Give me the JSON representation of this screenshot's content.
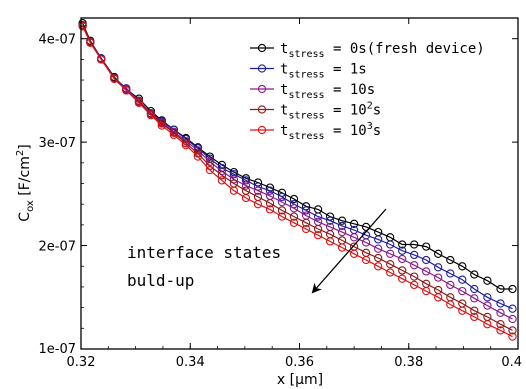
{
  "chart_data": {
    "type": "line",
    "xlabel": "x [µm]",
    "ylabel": {
      "base": "C",
      "sub": "ox",
      "unit_open": " [F/cm",
      "unit_sup": "2",
      "unit_close": "]"
    },
    "xlim": [
      0.32,
      0.4
    ],
    "ylim": [
      1e-07,
      4.2e-07
    ],
    "xticks": [
      {
        "value": 0.32,
        "label": "0.32"
      },
      {
        "value": 0.34,
        "label": "0.34"
      },
      {
        "value": 0.36,
        "label": "0.36"
      },
      {
        "value": 0.38,
        "label": "0.38"
      },
      {
        "value": 0.4,
        "label": "0.4"
      }
    ],
    "yticks": [
      {
        "value": 1e-07,
        "label": "1e-07"
      },
      {
        "value": 2e-07,
        "label": "2e-07"
      },
      {
        "value": 3e-07,
        "label": "3e-07"
      },
      {
        "value": 4e-07,
        "label": "4e-07"
      }
    ],
    "grid": false,
    "legend_position": "top-right",
    "series": [
      {
        "legend": {
          "base": "t",
          "sub": "stress",
          "rest": " = 0s(fresh device)",
          "sup": ""
        },
        "color": "#000000",
        "x": [
          0.3203,
          0.3217,
          0.3237,
          0.3261,
          0.3283,
          0.3306,
          0.3328,
          0.3348,
          0.337,
          0.3392,
          0.3414,
          0.3436,
          0.3458,
          0.348,
          0.3502,
          0.3524,
          0.3546,
          0.3568,
          0.359,
          0.3612,
          0.3634,
          0.3656,
          0.3678,
          0.37,
          0.3722,
          0.3744,
          0.3766,
          0.3788,
          0.381,
          0.3832,
          0.3854,
          0.3876,
          0.3898,
          0.392,
          0.3944,
          0.3968,
          0.399
        ],
        "y": [
          4.15e-07,
          3.98e-07,
          3.81e-07,
          3.63e-07,
          3.51e-07,
          3.42e-07,
          3.3e-07,
          3.21e-07,
          3.12e-07,
          3.04e-07,
          2.95e-07,
          2.86e-07,
          2.78e-07,
          2.71e-07,
          2.65e-07,
          2.61e-07,
          2.56e-07,
          2.51e-07,
          2.45e-07,
          2.38e-07,
          2.35e-07,
          2.28e-07,
          2.24e-07,
          2.21e-07,
          2.18e-07,
          2.13e-07,
          2.08e-07,
          2.01e-07,
          2.01e-07,
          1.99e-07,
          1.92e-07,
          1.86e-07,
          1.8e-07,
          1.72e-07,
          1.66e-07,
          1.58e-07,
          1.58e-07
        ]
      },
      {
        "legend": {
          "base": "t",
          "sub": "stress",
          "rest": " = 1s",
          "sup": ""
        },
        "color": "#1f1fa0",
        "x": [
          0.3203,
          0.3217,
          0.3237,
          0.3261,
          0.3283,
          0.3306,
          0.3328,
          0.3348,
          0.337,
          0.3392,
          0.3414,
          0.3436,
          0.3458,
          0.348,
          0.3502,
          0.3524,
          0.3546,
          0.3568,
          0.359,
          0.3612,
          0.3634,
          0.3656,
          0.3678,
          0.37,
          0.3722,
          0.3744,
          0.3766,
          0.3788,
          0.381,
          0.3832,
          0.3854,
          0.3876,
          0.3898,
          0.392,
          0.3944,
          0.3968,
          0.399
        ],
        "y": [
          4.13e-07,
          3.97e-07,
          3.81e-07,
          3.62e-07,
          3.52e-07,
          3.4e-07,
          3.28e-07,
          3.2e-07,
          3.12e-07,
          3.03e-07,
          2.94e-07,
          2.84e-07,
          2.75e-07,
          2.69e-07,
          2.63e-07,
          2.57e-07,
          2.53e-07,
          2.47e-07,
          2.4e-07,
          2.34e-07,
          2.28e-07,
          2.24e-07,
          2.19e-07,
          2.15e-07,
          2.1e-07,
          2.06e-07,
          2.01e-07,
          1.95e-07,
          1.91e-07,
          1.86e-07,
          1.79e-07,
          1.73e-07,
          1.67e-07,
          1.58e-07,
          1.5e-07,
          1.44e-07,
          1.39e-07
        ]
      },
      {
        "legend": {
          "base": "t",
          "sub": "stress",
          "rest": " = 10s",
          "sup": ""
        },
        "color": "#8a1a8a",
        "x": [
          0.3203,
          0.3217,
          0.3237,
          0.3261,
          0.3283,
          0.3306,
          0.3328,
          0.3348,
          0.337,
          0.3392,
          0.3414,
          0.3436,
          0.3458,
          0.348,
          0.3502,
          0.3524,
          0.3546,
          0.3568,
          0.359,
          0.3612,
          0.3634,
          0.3656,
          0.3678,
          0.37,
          0.3722,
          0.3744,
          0.3766,
          0.3788,
          0.381,
          0.3832,
          0.3854,
          0.3876,
          0.3898,
          0.392,
          0.3944,
          0.3968,
          0.399
        ],
        "y": [
          4.13e-07,
          3.97e-07,
          3.8e-07,
          3.62e-07,
          3.51e-07,
          3.4e-07,
          3.28e-07,
          3.19e-07,
          3.1e-07,
          3.01e-07,
          2.92e-07,
          2.81e-07,
          2.72e-07,
          2.64e-07,
          2.58e-07,
          2.53e-07,
          2.48e-07,
          2.42e-07,
          2.36e-07,
          2.29e-07,
          2.23e-07,
          2.18e-07,
          2.13e-07,
          2.08e-07,
          2.03e-07,
          1.97e-07,
          1.92e-07,
          1.87e-07,
          1.81e-07,
          1.75e-07,
          1.69e-07,
          1.62e-07,
          1.56e-07,
          1.49e-07,
          1.42e-07,
          1.35e-07,
          1.29e-07
        ]
      },
      {
        "legend": {
          "base": "t",
          "sub": "stress",
          "rest": " = 10",
          "sup": "2",
          "tail": "s"
        },
        "color": "#8b1a1a",
        "x": [
          0.3203,
          0.3217,
          0.3237,
          0.3261,
          0.3283,
          0.3306,
          0.3328,
          0.3348,
          0.337,
          0.3392,
          0.3414,
          0.3436,
          0.3458,
          0.348,
          0.3502,
          0.3524,
          0.3546,
          0.3568,
          0.359,
          0.3612,
          0.3634,
          0.3656,
          0.3678,
          0.37,
          0.3722,
          0.3744,
          0.3766,
          0.3788,
          0.381,
          0.3832,
          0.3854,
          0.3876,
          0.3898,
          0.392,
          0.3944,
          0.3968,
          0.399
        ],
        "y": [
          4.13e-07,
          3.97e-07,
          3.8e-07,
          3.62e-07,
          3.5e-07,
          3.39e-07,
          3.27e-07,
          3.18e-07,
          3.09e-07,
          2.99e-07,
          2.89e-07,
          2.77e-07,
          2.68e-07,
          2.6e-07,
          2.53e-07,
          2.47e-07,
          2.41e-07,
          2.34e-07,
          2.28e-07,
          2.22e-07,
          2.16e-07,
          2.11e-07,
          2.05e-07,
          1.99e-07,
          1.93e-07,
          1.88e-07,
          1.82e-07,
          1.76e-07,
          1.7e-07,
          1.63e-07,
          1.57e-07,
          1.5e-07,
          1.44e-07,
          1.37e-07,
          1.31e-07,
          1.24e-07,
          1.18e-07
        ]
      },
      {
        "legend": {
          "base": "t",
          "sub": "stress",
          "rest": " = 10",
          "sup": "3",
          "tail": "s"
        },
        "color": "#e01010",
        "x": [
          0.3203,
          0.3217,
          0.3237,
          0.3261,
          0.3283,
          0.3306,
          0.3328,
          0.3348,
          0.337,
          0.3392,
          0.3414,
          0.3436,
          0.3458,
          0.348,
          0.3502,
          0.3524,
          0.3546,
          0.3568,
          0.359,
          0.3612,
          0.3634,
          0.3656,
          0.3678,
          0.37,
          0.3722,
          0.3744,
          0.3766,
          0.3788,
          0.381,
          0.3832,
          0.3854,
          0.3876,
          0.3898,
          0.392,
          0.3944,
          0.3968,
          0.399
        ],
        "y": [
          4.12e-07,
          3.96e-07,
          3.8e-07,
          3.61e-07,
          3.5e-07,
          3.38e-07,
          3.26e-07,
          3.16e-07,
          3.07e-07,
          2.97e-07,
          2.86e-07,
          2.73e-07,
          2.63e-07,
          2.53e-07,
          2.46e-07,
          2.4e-07,
          2.35e-07,
          2.28e-07,
          2.22e-07,
          2.16e-07,
          2.1e-07,
          2.04e-07,
          1.98e-07,
          1.92e-07,
          1.86e-07,
          1.8e-07,
          1.74e-07,
          1.68e-07,
          1.62e-07,
          1.56e-07,
          1.5e-07,
          1.43e-07,
          1.37e-07,
          1.31e-07,
          1.24e-07,
          1.18e-07,
          1.12e-07
        ]
      }
    ],
    "annotation": {
      "lines": [
        "interface states",
        "buld-up"
      ]
    }
  }
}
